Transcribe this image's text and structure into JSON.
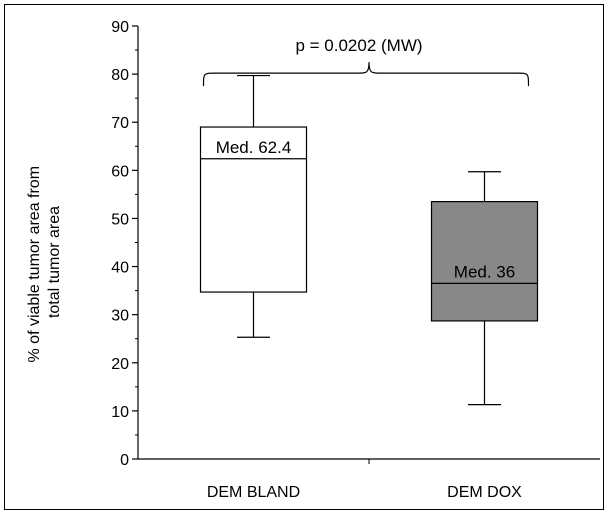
{
  "chart_data": {
    "type": "box",
    "ylabel": "% of viable  tumor area  from total tumor area",
    "ylabel_lines": [
      "% of viable  tumor area  from",
      "total tumor area"
    ],
    "ylim": [
      0,
      90
    ],
    "yticks": [
      0,
      10,
      20,
      30,
      40,
      50,
      60,
      70,
      80,
      90
    ],
    "categories": [
      "DEM BLAND",
      "DEM DOX"
    ],
    "boxes": [
      {
        "name": "DEM BLAND",
        "min": 25.3,
        "q1": 34.7,
        "median": 62.4,
        "q3": 69.0,
        "max": 79.7,
        "median_label": "Med. 62.4",
        "fill": "#ffffff"
      },
      {
        "name": "DEM DOX",
        "min": 11.3,
        "q1": 28.7,
        "median": 36.5,
        "q3": 53.5,
        "max": 59.7,
        "median_label": "Med. 36",
        "fill": "#888888"
      }
    ],
    "annotation": {
      "text": "p = 0.0202 (MW)",
      "bracket_level": 80,
      "bracket_tip": 82.5
    },
    "grid": false,
    "legend": "none"
  }
}
